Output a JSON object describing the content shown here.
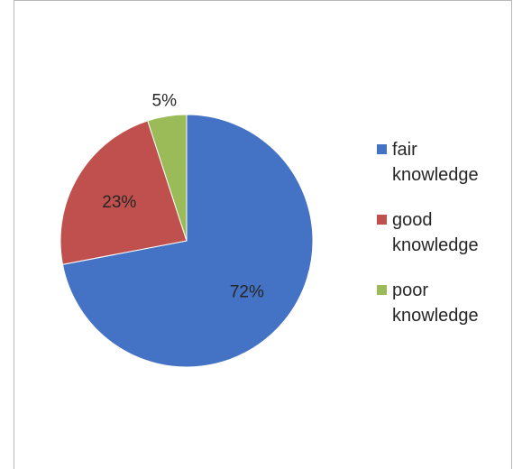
{
  "chart_data": {
    "type": "pie",
    "categories": [
      "fair knowledge",
      "good knowledge",
      "poor knowledge"
    ],
    "values": [
      72,
      23,
      5
    ],
    "labels": [
      "72%",
      "23%",
      "5%"
    ],
    "colors": [
      "#4472C4",
      "#C0504D",
      "#9BBB59"
    ],
    "legend_position": "right"
  },
  "legend": {
    "items": [
      {
        "label_line1": "fair",
        "label_line2": "knowledge",
        "color": "#4472C4"
      },
      {
        "label_line1": "good",
        "label_line2": "knowledge",
        "color": "#C0504D"
      },
      {
        "label_line1": "poor",
        "label_line2": "knowledge",
        "color": "#9BBB59"
      }
    ]
  }
}
